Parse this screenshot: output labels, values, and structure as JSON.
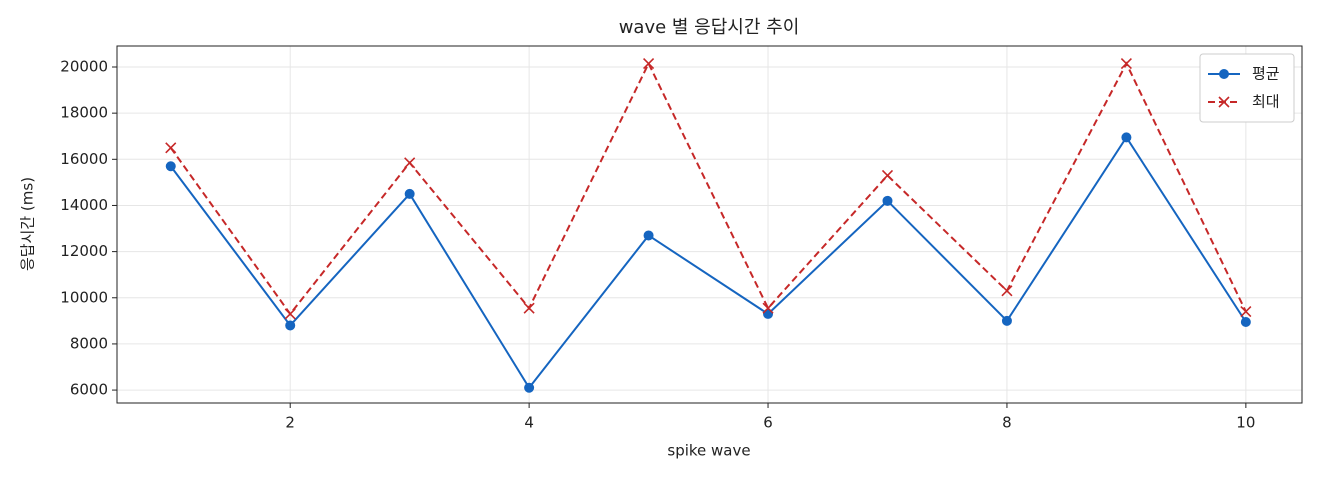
{
  "chart_data": {
    "type": "line",
    "title": "wave 별 응답시간 추이",
    "xlabel": "spike wave",
    "ylabel": "응답시간 (ms)",
    "x": [
      1,
      2,
      3,
      4,
      5,
      6,
      7,
      8,
      9,
      10
    ],
    "series": [
      {
        "name": "평균",
        "color": "#1565c0",
        "marker": "o",
        "linestyle": "solid",
        "values": [
          15700,
          8800,
          14500,
          6100,
          12700,
          9300,
          14200,
          9000,
          16950,
          8950
        ]
      },
      {
        "name": "최대",
        "color": "#c62828",
        "marker": "x",
        "linestyle": "dashed",
        "values": [
          16500,
          9300,
          15850,
          9550,
          20150,
          9550,
          15300,
          10300,
          20150,
          9400
        ]
      }
    ],
    "xlim": [
      0.55,
      10.47
    ],
    "ylim": [
      5440,
      20910
    ],
    "xticks": [
      2,
      4,
      6,
      8,
      10
    ],
    "yticks": [
      6000,
      8000,
      10000,
      12000,
      14000,
      16000,
      18000,
      20000
    ],
    "grid": true,
    "legend": "upper right"
  }
}
